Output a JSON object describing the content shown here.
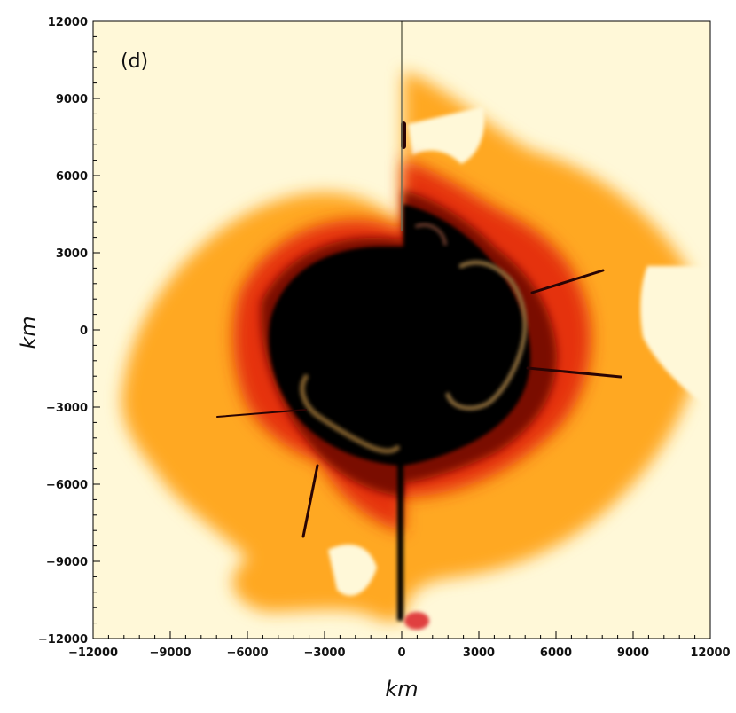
{
  "chart_data": {
    "type": "heatmap",
    "panel_label": "(d)",
    "xlabel": "km",
    "ylabel": "km",
    "xlim": [
      -12000,
      12000
    ],
    "ylim": [
      -12000,
      12000
    ],
    "x_ticks": [
      -12000,
      -9000,
      -6000,
      -3000,
      0,
      3000,
      6000,
      9000,
      12000
    ],
    "y_ticks": [
      12000,
      9000,
      6000,
      3000,
      0,
      -3000,
      -6000,
      -9000,
      -12000
    ],
    "x_tick_labels": [
      "−12000",
      "−9000",
      "−6000",
      "−3000",
      "0",
      "3000",
      "6000",
      "9000",
      "12000"
    ],
    "y_tick_labels": [
      "12000",
      "9000",
      "6000",
      "3000",
      "0",
      "−3000",
      "−6000",
      "−9000",
      "−12000"
    ],
    "grid": false,
    "colormap": [
      "#000000",
      "#5a0a05",
      "#c81e0a",
      "#ff5a14",
      "#ffa21e",
      "#ffe6a0",
      "#fff8d8"
    ],
    "background_color": "#fff8d8"
  }
}
